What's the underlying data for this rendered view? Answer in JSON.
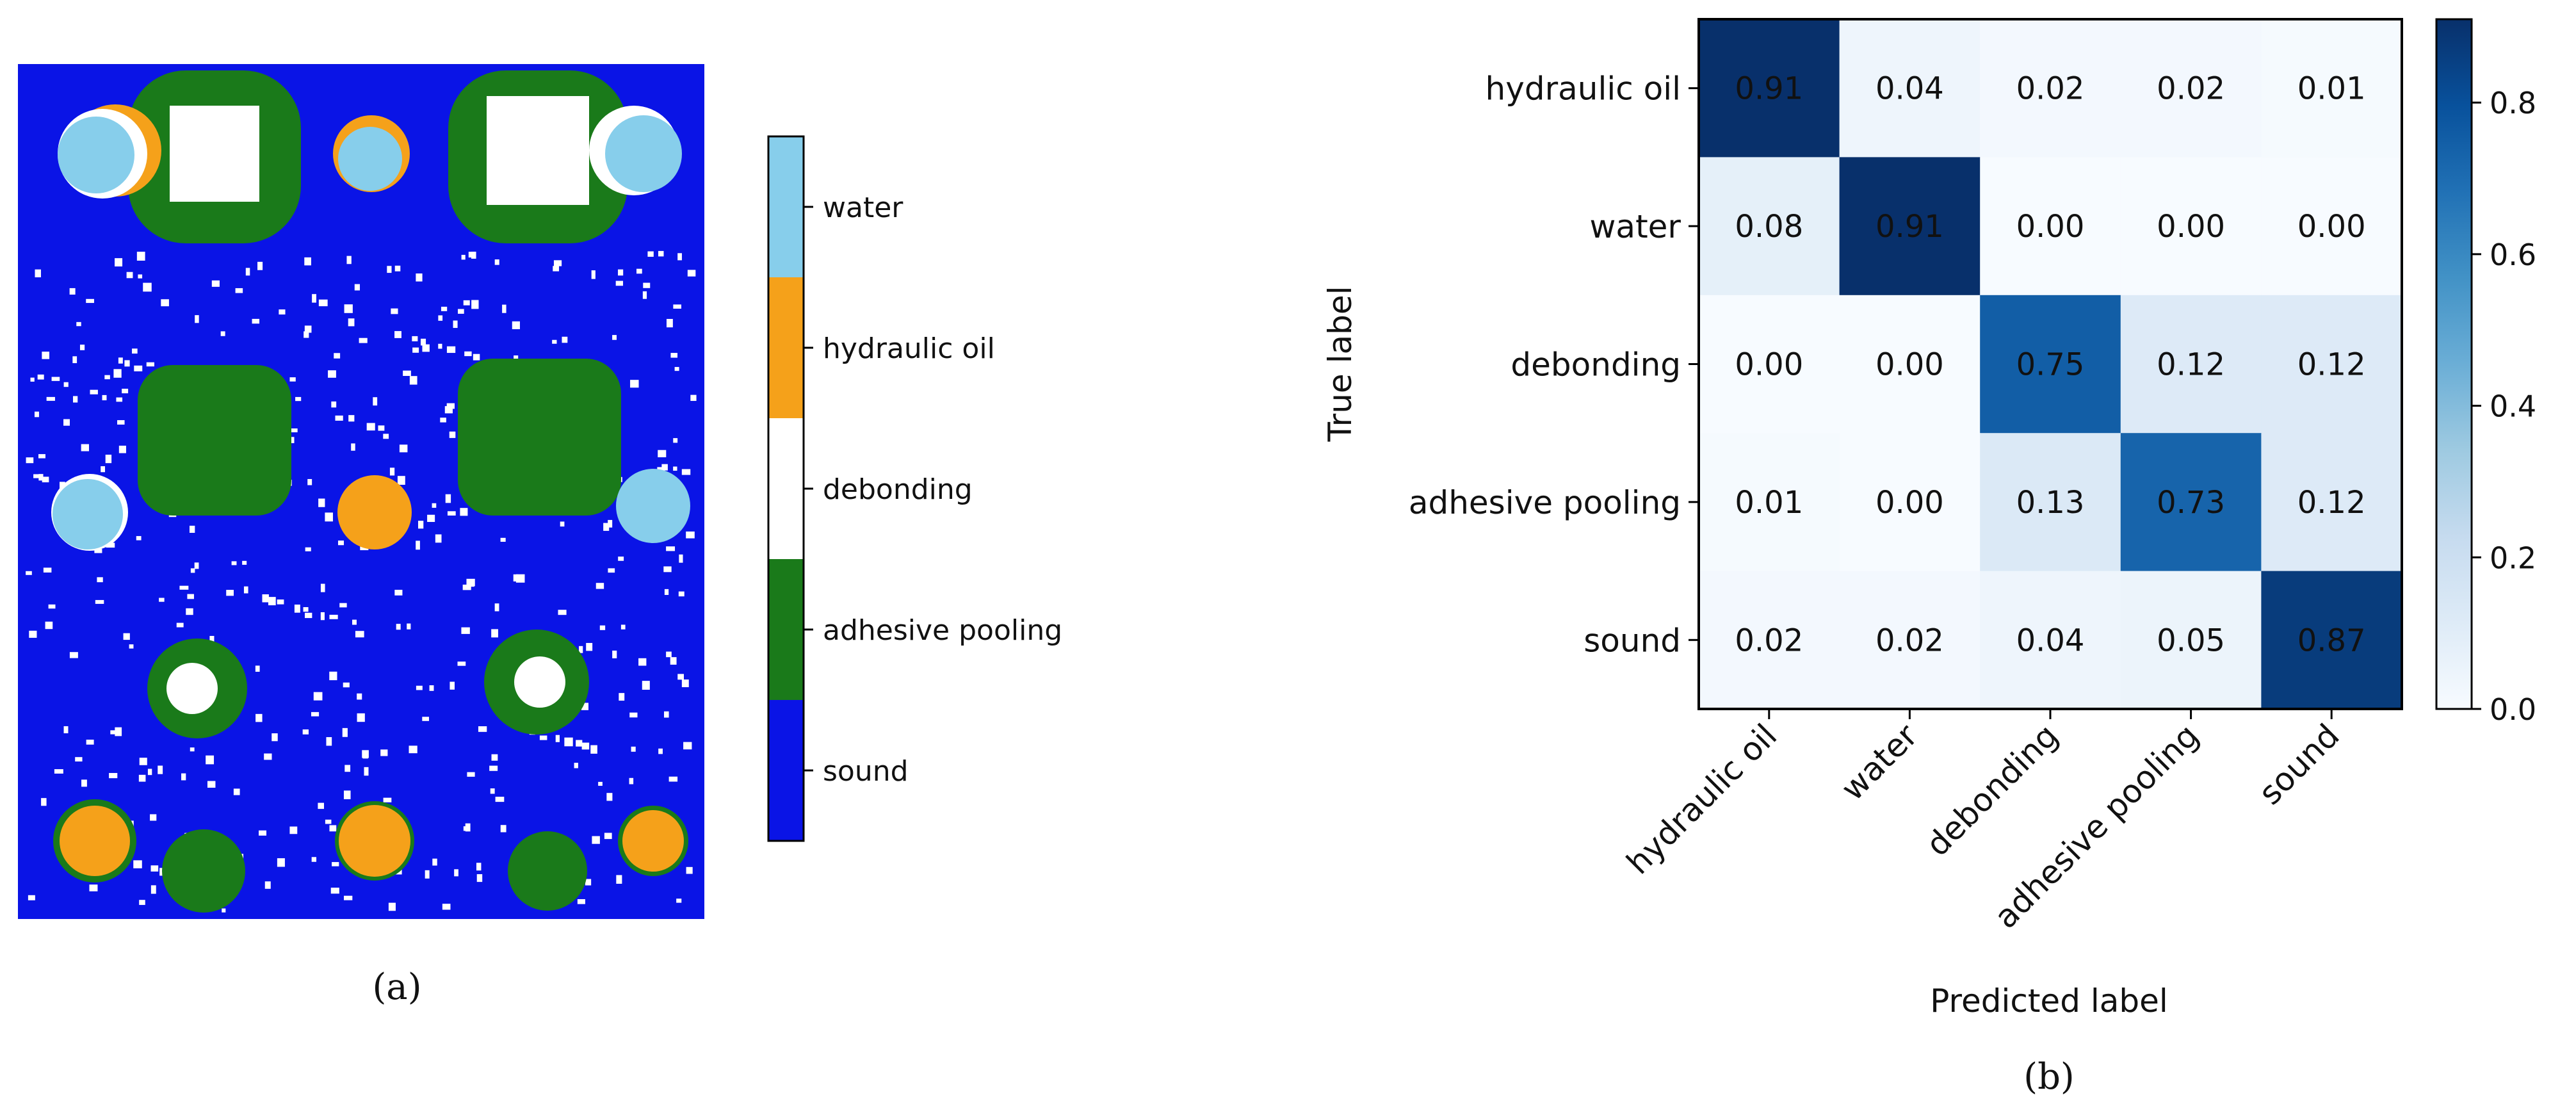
{
  "panel_a": {
    "caption": "(a)",
    "legend": [
      {
        "label": "water",
        "color": "#87CEEB"
      },
      {
        "label": "hydraulic oil",
        "color": "#F5A11A"
      },
      {
        "label": "debonding",
        "color": "#FFFFFF"
      },
      {
        "label": "adhesive pooling",
        "color": "#1A7A1A"
      },
      {
        "label": "sound",
        "color": "#0A14E6"
      }
    ]
  },
  "panel_b": {
    "caption": "(b)"
  },
  "chart_data": {
    "type": "heatmap",
    "title": "",
    "xlabel": "Predicted label",
    "ylabel": "True label",
    "x_categories": [
      "hydraulic oil",
      "water",
      "debonding",
      "adhesive pooling",
      "sound"
    ],
    "y_categories": [
      "hydraulic oil",
      "water",
      "debonding",
      "adhesive pooling",
      "sound"
    ],
    "values": [
      [
        0.91,
        0.04,
        0.02,
        0.02,
        0.01
      ],
      [
        0.08,
        0.91,
        0.0,
        0.0,
        0.0
      ],
      [
        0.0,
        0.0,
        0.75,
        0.12,
        0.12
      ],
      [
        0.01,
        0.0,
        0.13,
        0.73,
        0.12
      ],
      [
        0.02,
        0.02,
        0.04,
        0.05,
        0.87
      ]
    ],
    "value_labels": [
      [
        "0.91",
        "0.04",
        "0.02",
        "0.02",
        "0.01"
      ],
      [
        "0.08",
        "0.91",
        "0.00",
        "0.00",
        "0.00"
      ],
      [
        "0.00",
        "0.00",
        "0.75",
        "0.12",
        "0.12"
      ],
      [
        "0.01",
        "0.00",
        "0.13",
        "0.73",
        "0.12"
      ],
      [
        "0.02",
        "0.02",
        "0.04",
        "0.05",
        "0.87"
      ]
    ],
    "colorscale": "Blues",
    "colorbar": {
      "range": [
        0.0,
        0.91
      ],
      "ticks": [
        0.0,
        0.2,
        0.4,
        0.6,
        0.8
      ],
      "tick_labels": [
        "0.0",
        "0.2",
        "0.4",
        "0.6",
        "0.8"
      ]
    }
  }
}
